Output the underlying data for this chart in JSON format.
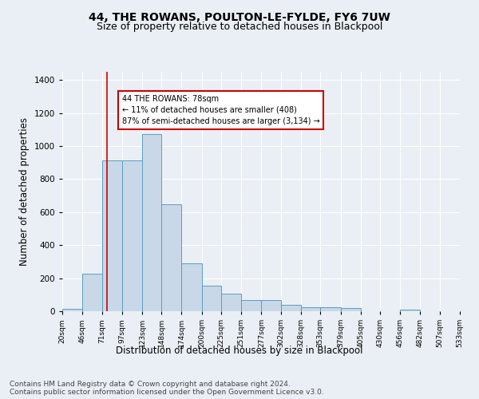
{
  "title": "44, THE ROWANS, POULTON-LE-FYLDE, FY6 7UW",
  "subtitle": "Size of property relative to detached houses in Blackpool",
  "xlabel": "Distribution of detached houses by size in Blackpool",
  "ylabel": "Number of detached properties",
  "footnote1": "Contains HM Land Registry data © Crown copyright and database right 2024.",
  "footnote2": "Contains public sector information licensed under the Open Government Licence v3.0.",
  "annotation_title": "44 THE ROWANS: 78sqm",
  "annotation_line2": "← 11% of detached houses are smaller (408)",
  "annotation_line3": "87% of semi-detached houses are larger (3,134) →",
  "bar_color": "#c8d8e8",
  "bar_edge_color": "#5a9fc0",
  "vline_color": "#cc0000",
  "vline_x": 78,
  "bin_edges": [
    20,
    46,
    71,
    97,
    123,
    148,
    174,
    200,
    225,
    251,
    277,
    302,
    328,
    353,
    379,
    405,
    430,
    456,
    482,
    507,
    533
  ],
  "bar_heights": [
    15,
    225,
    915,
    915,
    1075,
    650,
    290,
    157,
    104,
    70,
    68,
    37,
    25,
    22,
    20,
    0,
    0,
    12,
    0,
    0
  ],
  "xlim": [
    20,
    533
  ],
  "ylim": [
    0,
    1450
  ],
  "yticks": [
    0,
    200,
    400,
    600,
    800,
    1000,
    1200,
    1400
  ],
  "background_color": "#eaeff5",
  "plot_bg_color": "#eaeff5",
  "annotation_box_color": "#ffffff",
  "annotation_box_edge": "#cc0000",
  "title_fontsize": 10,
  "subtitle_fontsize": 9,
  "xlabel_fontsize": 8.5,
  "ylabel_fontsize": 8.5,
  "footnote_fontsize": 6.5
}
